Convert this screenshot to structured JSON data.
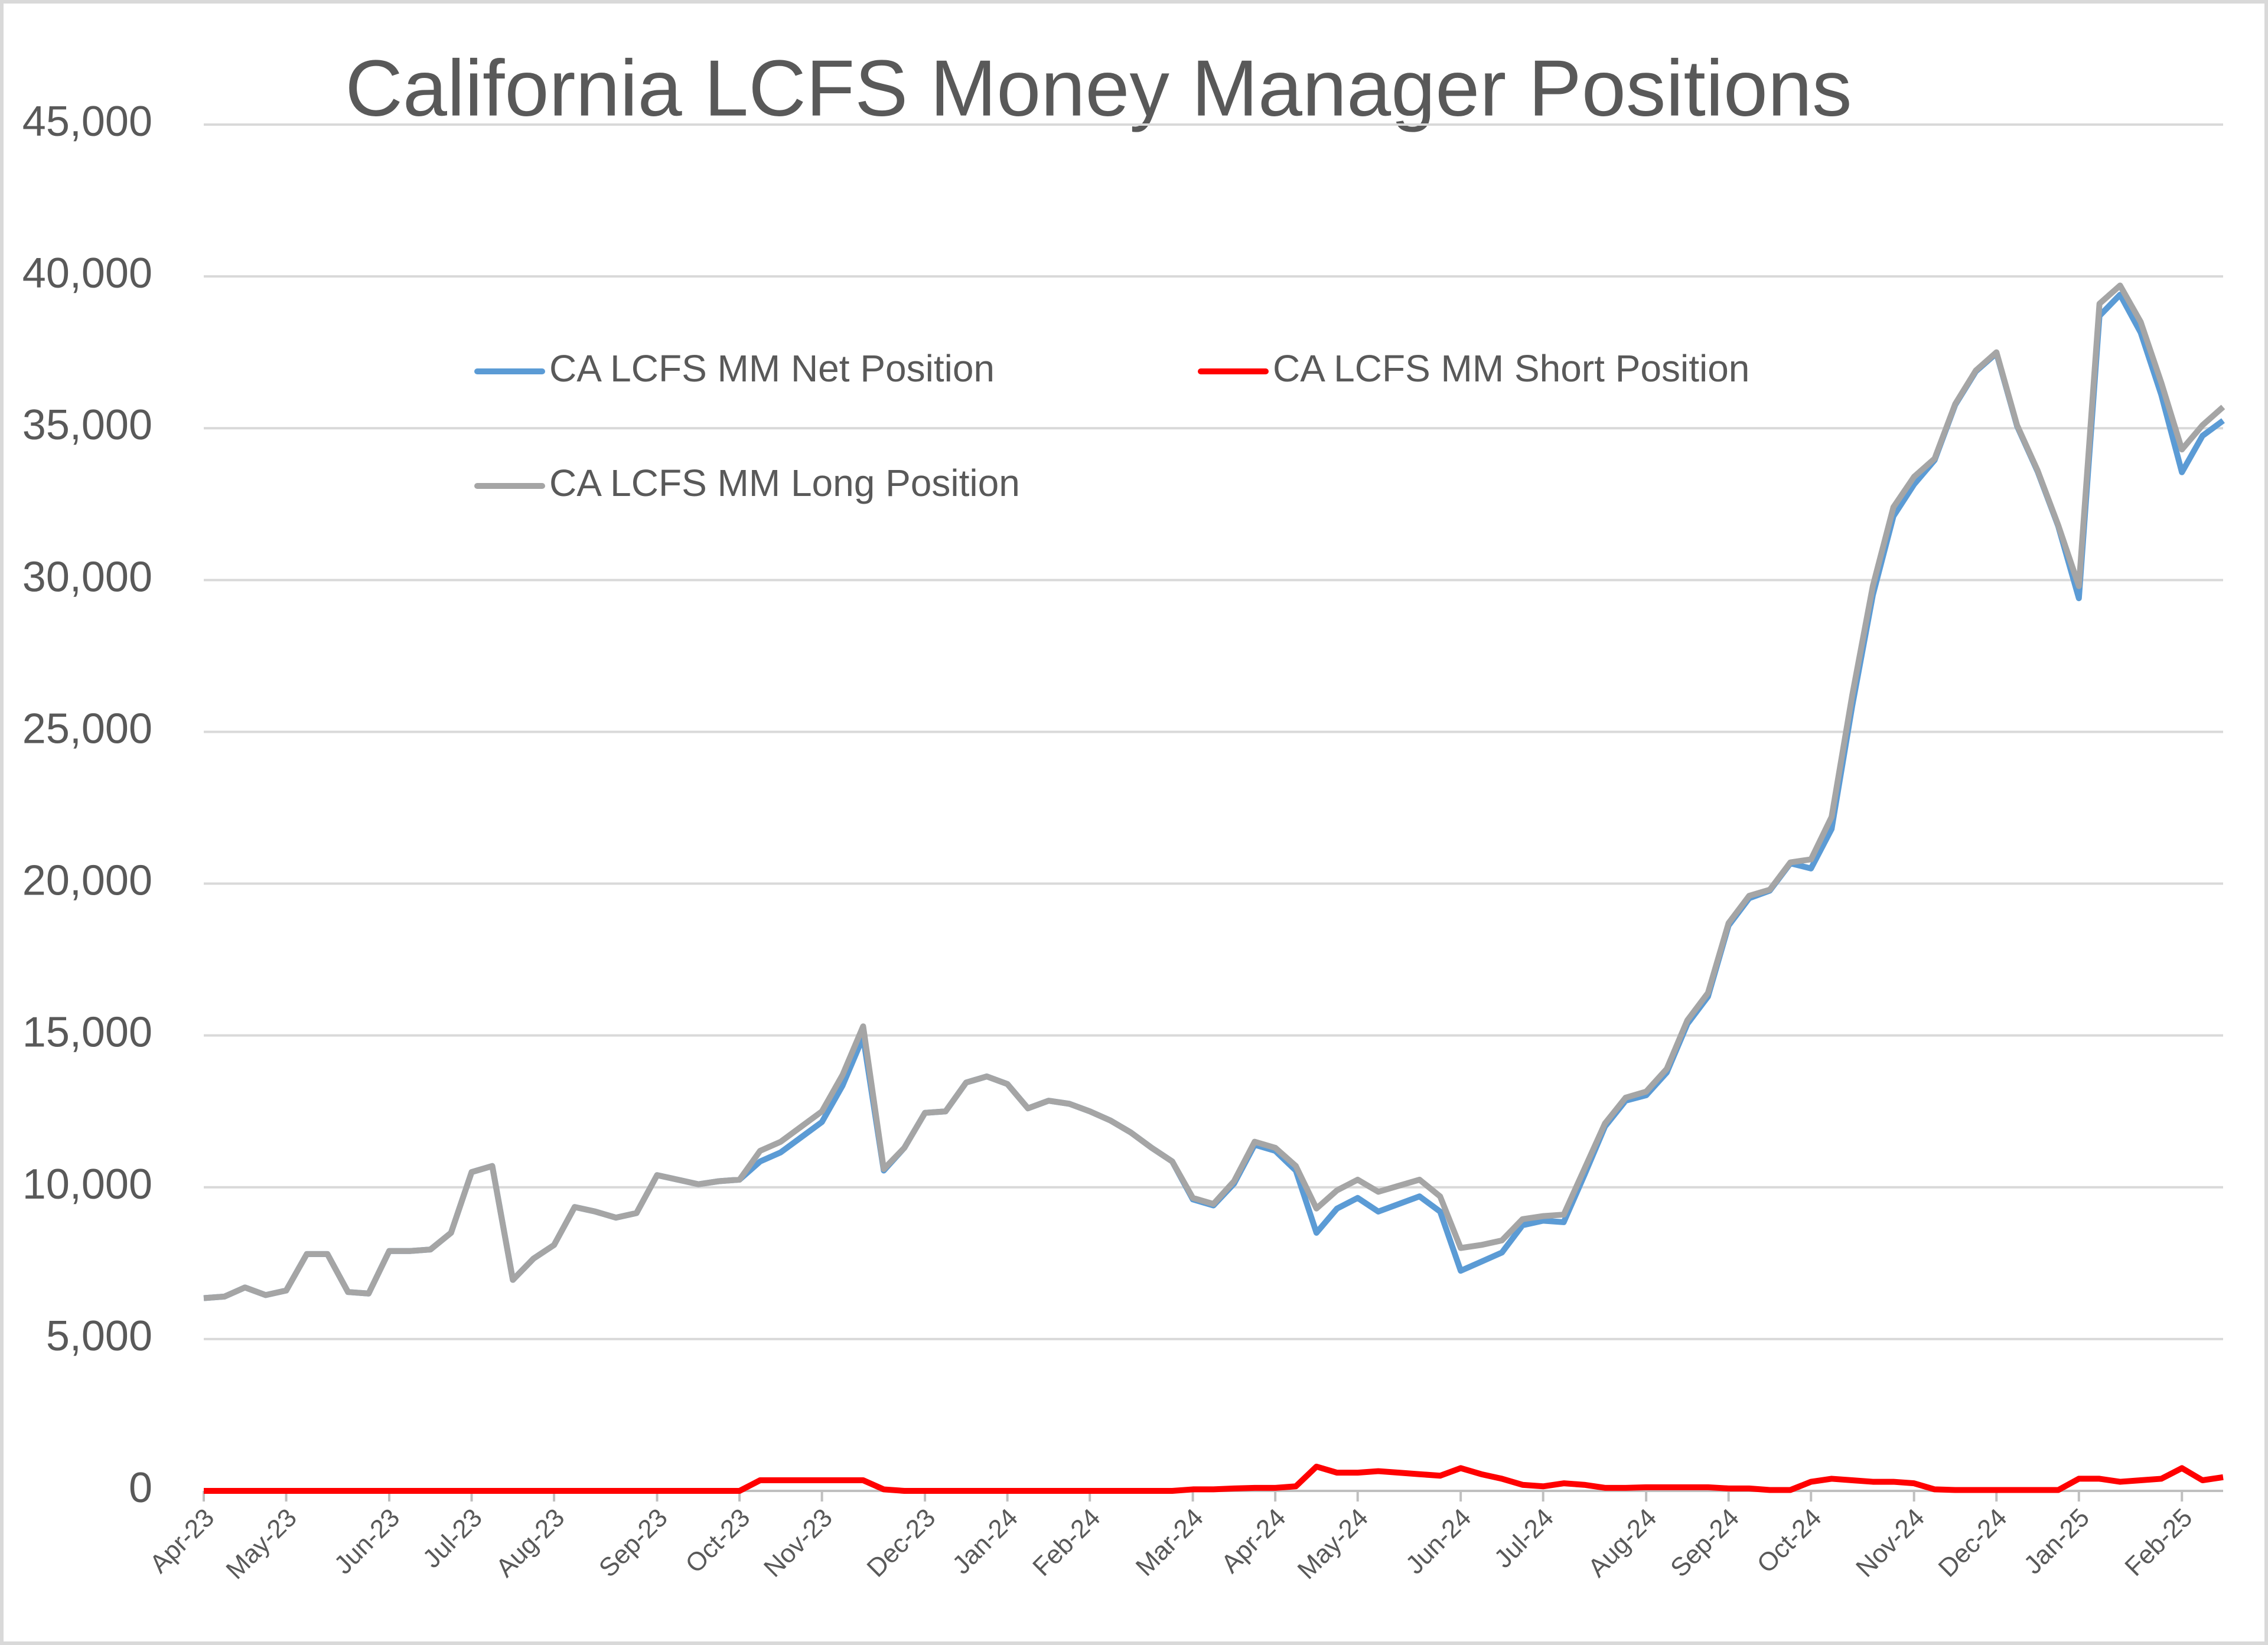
{
  "chart_data": {
    "type": "line",
    "title": "California LCFS Money Manager Positions",
    "categories": [
      "Apr-23",
      null,
      null,
      null,
      "May-23",
      null,
      null,
      null,
      null,
      "Jun-23",
      null,
      null,
      null,
      "Jul-23",
      null,
      null,
      null,
      "Aug-23",
      null,
      null,
      null,
      null,
      "Sep-23",
      null,
      null,
      null,
      "Oct-23",
      null,
      null,
      null,
      "Nov-23",
      null,
      null,
      null,
      null,
      "Dec-23",
      null,
      null,
      null,
      "Jan-24",
      null,
      null,
      null,
      "Feb-24",
      null,
      null,
      null,
      null,
      "Mar-24",
      null,
      null,
      null,
      "Apr-24",
      null,
      null,
      null,
      "May-24",
      null,
      null,
      null,
      null,
      "Jun-24",
      null,
      null,
      null,
      "Jul-24",
      null,
      null,
      null,
      null,
      "Aug-24",
      null,
      null,
      null,
      "Sep-24",
      null,
      null,
      null,
      "Oct-24",
      null,
      null,
      null,
      null,
      "Nov-24",
      null,
      null,
      null,
      "Dec-24",
      null,
      null,
      null,
      "Jan-25",
      null,
      null,
      null,
      null,
      "Feb-25",
      null,
      null
    ],
    "series": [
      {
        "name": "CA LCFS MM Net Position",
        "color": "#5b9bd5",
        "values": [
          6350,
          6400,
          6700,
          6450,
          6600,
          7800,
          7800,
          6550,
          6500,
          7900,
          7900,
          7950,
          8500,
          10500,
          10700,
          6950,
          7650,
          8100,
          9350,
          9200,
          9000,
          9150,
          10400,
          10250,
          10100,
          10200,
          10250,
          10850,
          11150,
          11650,
          12150,
          13350,
          14950,
          10550,
          11300,
          12450,
          12500,
          13450,
          13650,
          13400,
          12600,
          12850,
          12750,
          12500,
          12200,
          11800,
          11300,
          10850,
          9600,
          9400,
          10120,
          11400,
          11200,
          10550,
          8500,
          9300,
          9650,
          9200,
          9450,
          9700,
          9200,
          7250,
          7550,
          7850,
          8750,
          8900,
          8850,
          10400,
          12000,
          12850,
          13030,
          13780,
          15380,
          16280,
          18620,
          19520,
          19770,
          20670,
          20500,
          21800,
          25850,
          29500,
          32100,
          33150,
          33950,
          35770,
          36870,
          37470,
          35070,
          33570,
          31770,
          29400,
          38700,
          39400,
          38150,
          36100,
          33550,
          34750,
          35250
        ]
      },
      {
        "name": "CA LCFS MM Short Position",
        "color": "#ff0000",
        "values": [
          0,
          0,
          0,
          0,
          0,
          0,
          0,
          0,
          0,
          0,
          0,
          0,
          0,
          0,
          0,
          0,
          0,
          0,
          0,
          0,
          0,
          0,
          0,
          0,
          0,
          0,
          0,
          350,
          350,
          350,
          350,
          350,
          350,
          50,
          0,
          0,
          0,
          0,
          0,
          0,
          0,
          0,
          0,
          0,
          0,
          0,
          0,
          0,
          50,
          50,
          80,
          100,
          100,
          150,
          800,
          600,
          600,
          650,
          600,
          550,
          500,
          750,
          550,
          400,
          200,
          150,
          250,
          200,
          100,
          100,
          120,
          120,
          120,
          120,
          80,
          80,
          30,
          30,
          300,
          400,
          350,
          300,
          300,
          250,
          50,
          30,
          30,
          30,
          30,
          30,
          30,
          400,
          400,
          300,
          350,
          400,
          750,
          350,
          450
        ]
      },
      {
        "name": "CA LCFS MM Long Position",
        "color": "#a5a5a5",
        "values": [
          6350,
          6400,
          6700,
          6450,
          6600,
          7800,
          7800,
          6550,
          6500,
          7900,
          7900,
          7950,
          8500,
          10500,
          10700,
          6950,
          7650,
          8100,
          9350,
          9200,
          9000,
          9150,
          10400,
          10250,
          10100,
          10200,
          10250,
          11200,
          11500,
          12000,
          12500,
          13700,
          15300,
          10600,
          11300,
          12450,
          12500,
          13450,
          13650,
          13400,
          12600,
          12850,
          12750,
          12500,
          12200,
          11800,
          11300,
          10850,
          9650,
          9450,
          10200,
          11500,
          11300,
          10700,
          9300,
          9900,
          10250,
          9850,
          10050,
          10250,
          9700,
          8000,
          8100,
          8250,
          8950,
          9050,
          9100,
          10600,
          12100,
          12950,
          13150,
          13900,
          15500,
          16400,
          18700,
          19600,
          19800,
          20700,
          20800,
          22200,
          26200,
          29800,
          32400,
          33400,
          34000,
          35800,
          36900,
          37500,
          35100,
          33600,
          31800,
          29800,
          39100,
          39700,
          38500,
          36500,
          34300,
          35100,
          35700
        ]
      }
    ],
    "ylim": [
      0,
      45000
    ],
    "yticks": [
      0,
      {
        "value": 5000,
        "label": "5,000"
      },
      {
        "value": 10000,
        "label": "10,000"
      },
      {
        "value": 15000,
        "label": "15,000"
      },
      {
        "value": 20000,
        "label": "20,000"
      },
      {
        "value": 25000,
        "label": "25,000"
      },
      {
        "value": 30000,
        "label": "30,000"
      },
      {
        "value": 35000,
        "label": "35,000"
      },
      {
        "value": 40000,
        "label": "40,000"
      },
      {
        "value": 45000,
        "label": "45,000"
      }
    ],
    "grid": true
  }
}
